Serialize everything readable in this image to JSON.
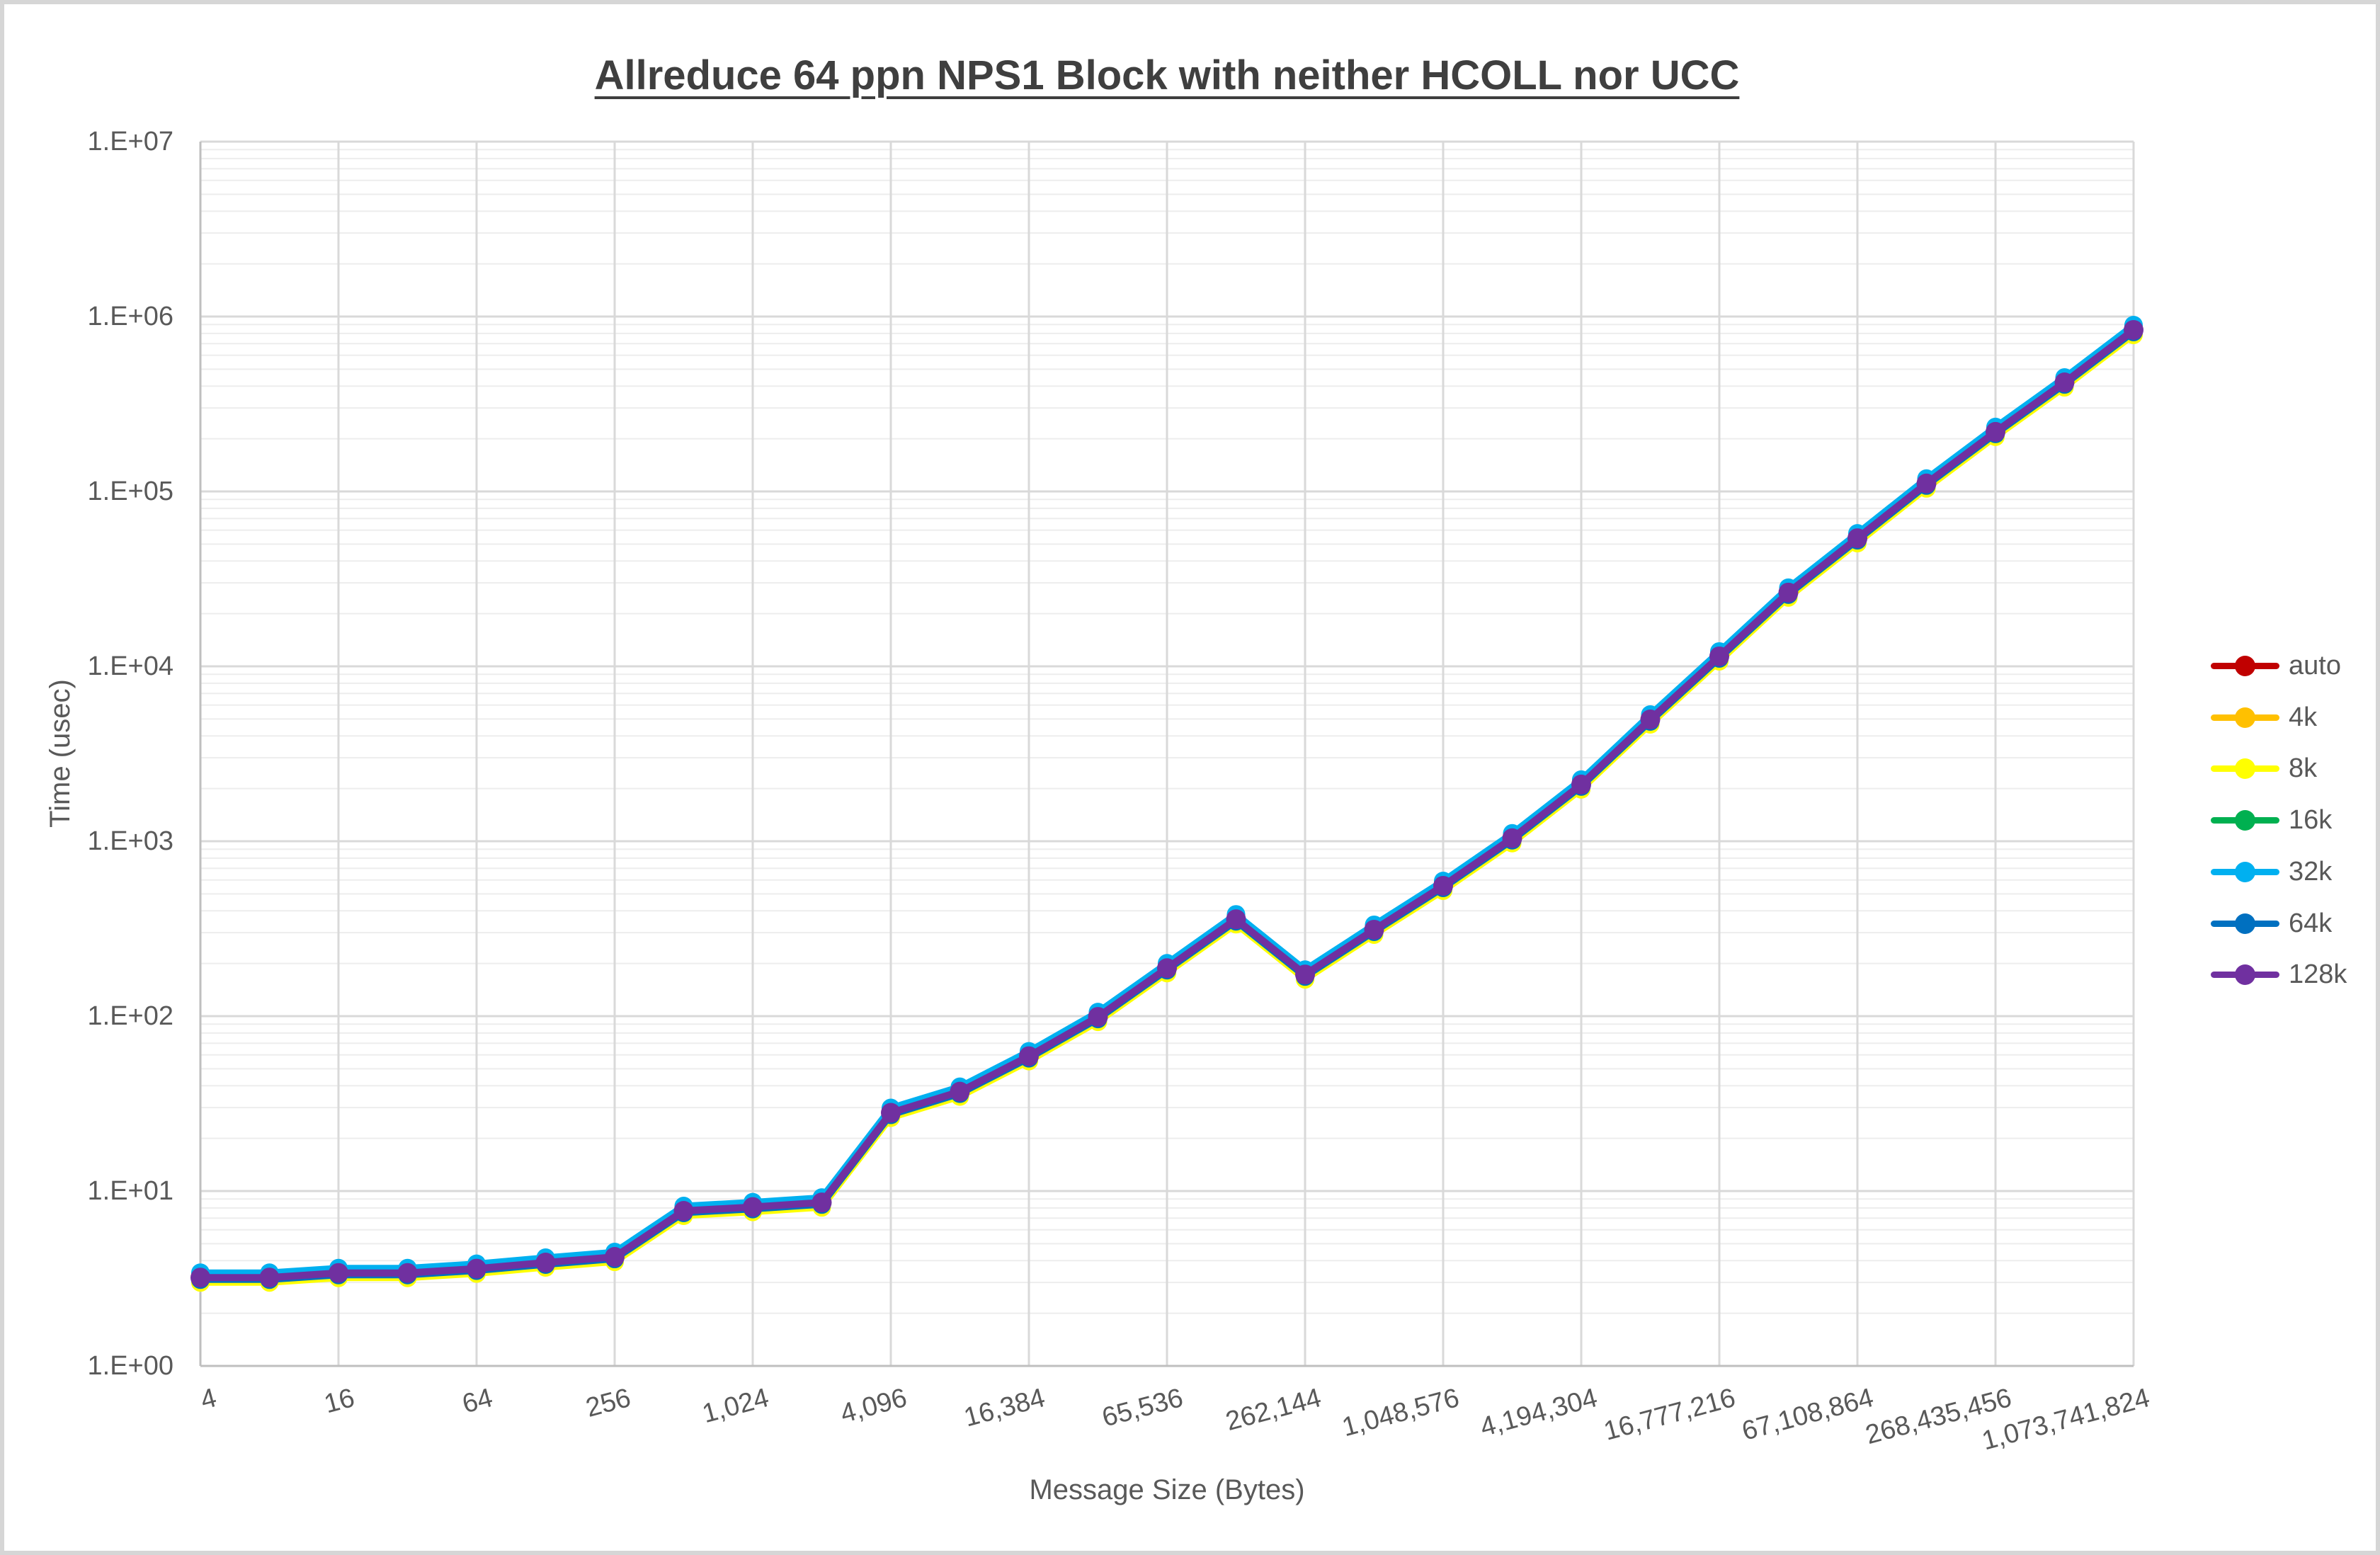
{
  "chart_data": {
    "type": "line",
    "title": "Allreduce 64 ppn NPS1 Block with neither HCOLL nor UCC",
    "xlabel": "Message Size (Bytes)",
    "ylabel": "Time (usec)",
    "x_scale": "log2",
    "y_scale": "log10",
    "xlim": [
      4,
      1073741824
    ],
    "ylim": [
      1,
      10000000
    ],
    "grid": {
      "major": true,
      "minor_log": true
    },
    "legend_position": "right",
    "x_tick_labels": [
      "4",
      "16",
      "64",
      "256",
      "1,024",
      "4,096",
      "16,384",
      "65,536",
      "262,144",
      "1,048,576",
      "4,194,304",
      "16,777,216",
      "67,108,864",
      "268,435,456",
      "1,073,741,824"
    ],
    "y_tick_labels": [
      "1.E+00",
      "1.E+01",
      "1.E+02",
      "1.E+03",
      "1.E+04",
      "1.E+05",
      "1.E+06",
      "1.E+07"
    ],
    "x": [
      4,
      8,
      16,
      32,
      64,
      128,
      256,
      512,
      1024,
      2048,
      4096,
      8192,
      16384,
      32768,
      65536,
      131072,
      262144,
      524288,
      1048576,
      2097152,
      4194304,
      8388608,
      16777216,
      33554432,
      67108864,
      134217728,
      268435456,
      536870912,
      1073741824
    ],
    "y": [
      3.2,
      3.2,
      3.4,
      3.4,
      3.6,
      3.9,
      4.2,
      7.7,
      8.1,
      8.6,
      28,
      37,
      59,
      99,
      188,
      358,
      173,
      312,
      556,
      1040,
      2110,
      4970,
      11400,
      26400,
      54000,
      111000,
      219000,
      420000,
      838000
    ],
    "series": [
      {
        "name": "auto",
        "color": "#C00000",
        "occluded_behind_top_series": true
      },
      {
        "name": "4k",
        "color": "#FFC000",
        "occluded_behind_top_series": true
      },
      {
        "name": "8k",
        "color": "#FFFF00",
        "occluded_behind_top_series": true
      },
      {
        "name": "16k",
        "color": "#00B050",
        "occluded_behind_top_series": true
      },
      {
        "name": "32k",
        "color": "#00B0F0",
        "occluded_behind_top_series": true
      },
      {
        "name": "64k",
        "color": "#0070C0",
        "occluded_behind_top_series": true
      },
      {
        "name": "128k",
        "color": "#7030A0",
        "occluded_behind_top_series": false
      }
    ],
    "style": {
      "title_color": "#3f3f3f",
      "label_color": "#595959",
      "axis_color": "#bfbfbf",
      "major_grid_color": "#d9d9d9",
      "minor_grid_color": "#ededed",
      "page_border_color": "#d6d6d6"
    }
  }
}
